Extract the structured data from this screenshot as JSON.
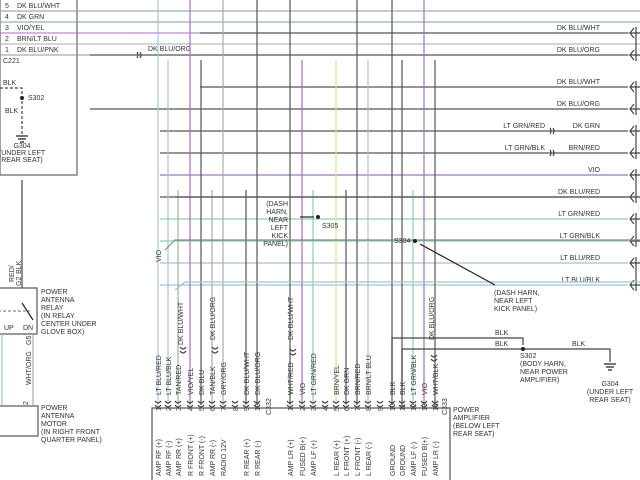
{
  "colors": {
    "dark": "#555555",
    "violet": "#a070c0",
    "ltgreen": "#8fd0a8",
    "ltblue": "#9ec8d8",
    "yellow": "#e0e090",
    "gray": "#aaaaaa",
    "bg": "#ffffff"
  },
  "c221": {
    "label": "C221",
    "pins": [
      {
        "num": "5",
        "wire": "DK BLU/WHT"
      },
      {
        "num": "4",
        "wire": "DK GRN"
      },
      {
        "num": "3",
        "wire": "VIO/YEL"
      },
      {
        "num": "2",
        "wire": "BRN/LT BLU"
      },
      {
        "num": "1",
        "wire": "DK BLU/PNK"
      }
    ],
    "splice_wire": "DK BLU/ORG"
  },
  "left_ground": {
    "wire_top": "BLK",
    "splice": "S302",
    "wire_bottom": "BLK",
    "ground": "G304",
    "location": [
      "(UNDER LEFT",
      "REAR SEAT)"
    ]
  },
  "relay": {
    "wire_in": "RED/",
    "wire_in2": "BLK",
    "pin_in": "G2",
    "up": "UP",
    "dn": "DN",
    "pin_out": "G5",
    "wire_out": "WHT/ORG",
    "name": [
      "POWER",
      "ANTENNA",
      "RELAY",
      "(IN RELAY",
      "CENTER UNDER",
      "GLOVE BOX)"
    ]
  },
  "motor": {
    "pin": "2",
    "name": [
      "POWER",
      "ANTENNA",
      "MOTOR",
      "(IN RIGHT FRONT",
      "QUARTER PANEL)"
    ]
  },
  "vio_label": "VIO",
  "dk_blu_wht_a": "DK BLU/WHT",
  "dk_blu_org_a": "DK BLU/ORG",
  "dk_blu_wht_b": "DK BLU/WHT",
  "dk_blu_org_b": "DK BLU/ORG",
  "s305": {
    "label": "S305",
    "note": [
      "(DASH",
      "HARN,",
      "NEAR",
      "LEFT",
      "KICK",
      "PANEL)"
    ]
  },
  "s304": {
    "label": "S304",
    "note": [
      "(DASH HARN,",
      "NEAR LEFT",
      "KICK PANEL)"
    ]
  },
  "right_wires": [
    {
      "left": "",
      "right": "DK BLU/WHT"
    },
    {
      "left": "",
      "right": "DK BLU/ORG"
    },
    {
      "left": "",
      "right": "DK BLU/WHT"
    },
    {
      "left": "",
      "right": "DK BLU/ORG"
    },
    {
      "left": "LT GRN/RED",
      "right": "DK GRN"
    },
    {
      "left": "LT GRN/BLK",
      "right": "BRN/RED"
    },
    {
      "left": "",
      "right": "VIO"
    },
    {
      "left": "",
      "right": "DK BLU/RED"
    },
    {
      "left": "",
      "right": "LT GRN/RED"
    },
    {
      "left": "",
      "right": "LT GRN/BLK"
    },
    {
      "left": "",
      "right": "LT BLU/RED"
    },
    {
      "left": "",
      "right": "LT BLU/BLK"
    }
  ],
  "c332": {
    "label": "C332",
    "pins": [
      {
        "num": "1",
        "wire": "LT BLU/RED",
        "func": "AMP RF (+)"
      },
      {
        "num": "2",
        "wire": "LT BLU/BLK",
        "func": "AMP RF (-)"
      },
      {
        "num": "3",
        "wire": "TAN/RED",
        "func": "AMP RR (+)"
      },
      {
        "num": "4",
        "wire": "VIO/YEL",
        "func": "R FRONT (+)"
      },
      {
        "num": "5",
        "wire": "DK BLU",
        "func": "R FRONT (-)"
      },
      {
        "num": "6",
        "wire": "TAN/BLK",
        "func": "AMP RR (-)"
      },
      {
        "num": "7",
        "wire": "GRY/ORG",
        "func": "RADIO 12V"
      },
      {
        "num": "8",
        "wire": "",
        "func": ""
      },
      {
        "num": "9",
        "wire": "DK BLU/WHT",
        "func": "R REAR (+)"
      },
      {
        "num": "10",
        "wire": "DK BLU/ORG",
        "func": "R REAR (-)"
      }
    ]
  },
  "c333": {
    "label": "C333",
    "pins": [
      {
        "num": "1",
        "wire": "WHT/RED",
        "func": "AMP LR (+)"
      },
      {
        "num": "2",
        "wire": "VIO",
        "func": "FUSED B(+)"
      },
      {
        "num": "3",
        "wire": "LT GRN/RED",
        "func": "AMP LF (+)"
      },
      {
        "num": "4",
        "wire": "",
        "func": ""
      },
      {
        "num": "5",
        "wire": "BRN/YEL",
        "func": "L REAR (+)"
      },
      {
        "num": "6",
        "wire": "DK GRN",
        "func": "L FRONT (+)"
      },
      {
        "num": "7",
        "wire": "BRN/RED",
        "func": "L FRONT (-)"
      },
      {
        "num": "8",
        "wire": "BRN/LT BLU",
        "func": "L REAR (-)"
      },
      {
        "num": "9",
        "wire": "",
        "func": ""
      },
      {
        "num": "10",
        "wire": "BLK",
        "func": "GROUND"
      },
      {
        "num": "11",
        "wire": "BLK",
        "func": "GROUND"
      },
      {
        "num": "12",
        "wire": "LT GRN/BLK",
        "func": "AMP LF (-)"
      },
      {
        "num": "13",
        "wire": "VIO",
        "func": "FUSED B(+)"
      },
      {
        "num": "14",
        "wire": "WHT/BLK",
        "func": "AMP LR (-)"
      }
    ]
  },
  "amp_ground": {
    "wire1": "BLK",
    "wire2": "BLK",
    "wire3": "BLK",
    "splice": "S302",
    "splice_note": [
      "(BODY HARN,",
      "NEAR POWER",
      "AMPLIFIER)"
    ],
    "ground": "G304",
    "location": [
      "(UNDER LEFT",
      "REAR SEAT)"
    ]
  },
  "amplifier": {
    "name": [
      "POWER",
      "AMPLIFIER",
      "(BELOW LEFT",
      "REAR SEAT)"
    ]
  }
}
